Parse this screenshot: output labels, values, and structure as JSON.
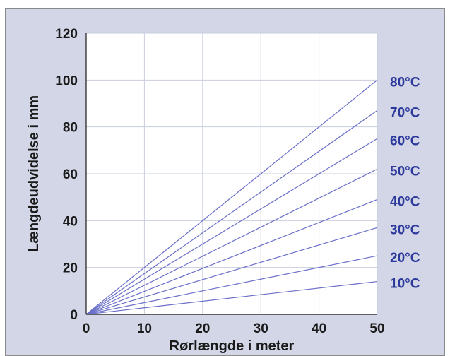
{
  "chart_data": {
    "type": "line",
    "title": "",
    "xlabel": "Rørlængde i meter",
    "ylabel": "Længdeudvidelse i mm",
    "xlim": [
      0,
      50
    ],
    "ylim": [
      0,
      120
    ],
    "xticks": [
      "0",
      "10",
      "20",
      "30",
      "40",
      "50"
    ],
    "yticks": [
      "0",
      "20",
      "40",
      "60",
      "80",
      "100",
      "120"
    ],
    "grid": true,
    "legend": "right-of-lines",
    "colors": {
      "background": "#d2d6e6",
      "plot": "#ffffff",
      "grid": "#c8cde0",
      "line": "#6a6fc8",
      "label": "#2d3a9c",
      "axis": "#1a1a1a"
    },
    "series": [
      {
        "name": "10°C",
        "x": [
          0,
          50
        ],
        "y": [
          0,
          14
        ]
      },
      {
        "name": "20°C",
        "x": [
          0,
          50
        ],
        "y": [
          0,
          25
        ]
      },
      {
        "name": "30°C",
        "x": [
          0,
          50
        ],
        "y": [
          0,
          37
        ]
      },
      {
        "name": "40°C",
        "x": [
          0,
          50
        ],
        "y": [
          0,
          49
        ]
      },
      {
        "name": "50°C",
        "x": [
          0,
          50
        ],
        "y": [
          0,
          62
        ]
      },
      {
        "name": "60°C",
        "x": [
          0,
          50
        ],
        "y": [
          0,
          75
        ]
      },
      {
        "name": "70°C",
        "x": [
          0,
          50
        ],
        "y": [
          0,
          87
        ]
      },
      {
        "name": "80°C",
        "x": [
          0,
          50
        ],
        "y": [
          0,
          100
        ]
      }
    ]
  }
}
